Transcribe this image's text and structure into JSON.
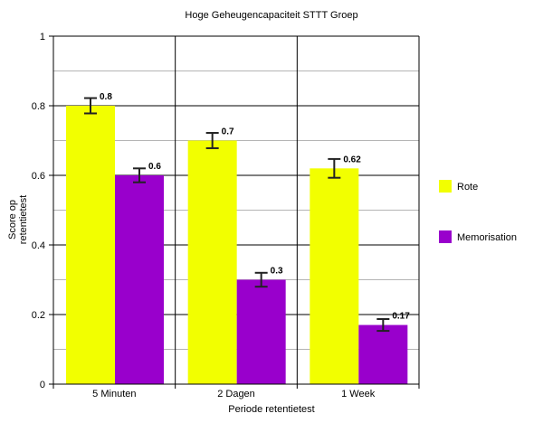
{
  "chart_data": {
    "type": "bar",
    "title": "Hoge Geheugencapaciteit STTT Groep",
    "xlabel": "Periode retentietest",
    "ylabel": [
      "Score op",
      "retentietest"
    ],
    "categories": [
      "5 Minuten",
      "2 Dagen",
      "1 Week"
    ],
    "ylim": [
      0,
      1
    ],
    "yticks": [
      "0",
      "0.2",
      "0.4",
      "0.6",
      "0.8",
      "1"
    ],
    "ytick_values": [
      0,
      0.2,
      0.4,
      0.6,
      0.8,
      1
    ],
    "grid": true,
    "legend_position": "right",
    "series": [
      {
        "name": "Rote",
        "color": "#f2ff00",
        "values": [
          0.8,
          0.7,
          0.62
        ],
        "labels": [
          "0.8",
          "0.7",
          "0.62"
        ],
        "error": [
          0.022,
          0.022,
          0.027
        ]
      },
      {
        "name": "Memorisation",
        "color": "#9900cc",
        "values": [
          0.6,
          0.3,
          0.17
        ],
        "labels": [
          "0.6",
          "0.3",
          "0.17"
        ],
        "error": [
          0.02,
          0.02,
          0.017
        ]
      }
    ]
  }
}
